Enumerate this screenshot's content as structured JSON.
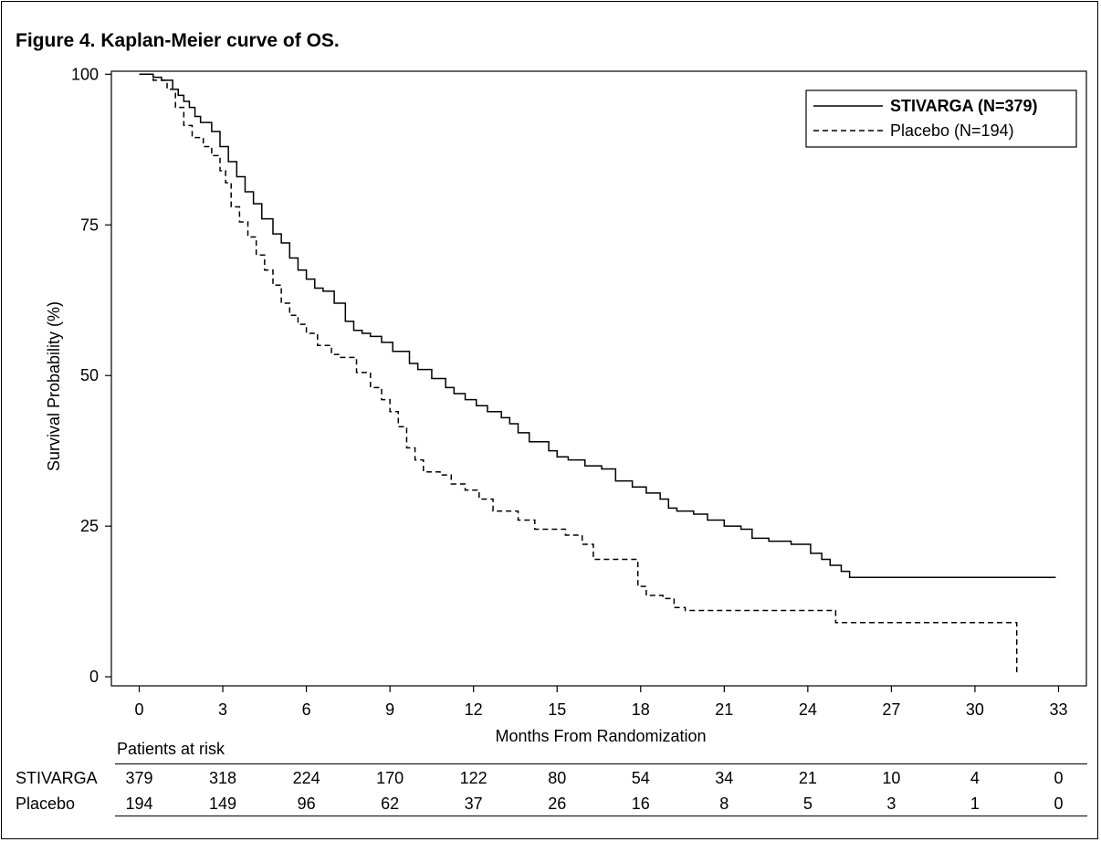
{
  "figure": {
    "title": "Figure 4. Kaplan-Meier curve of OS."
  },
  "chart_data": {
    "type": "line",
    "step": true,
    "xlabel": "Months From Randomization",
    "ylabel": "Survival Probability (%)",
    "xlim": [
      -1,
      34
    ],
    "ylim": [
      -1.5,
      100.5
    ],
    "xticks": [
      0,
      3,
      6,
      9,
      12,
      15,
      18,
      21,
      24,
      27,
      30,
      33
    ],
    "yticks": [
      0,
      25,
      50,
      75,
      100
    ],
    "grid": false,
    "legend": {
      "position": "top-right"
    },
    "series": [
      {
        "name": "STIVARGA (N=379)",
        "style": "solid",
        "x": [
          0,
          0.5,
          0.8,
          1.2,
          1.4,
          1.6,
          1.8,
          2.0,
          2.2,
          2.6,
          2.9,
          3.2,
          3.5,
          3.8,
          4.1,
          4.4,
          4.8,
          5.1,
          5.4,
          5.7,
          6.0,
          6.3,
          6.6,
          7.0,
          7.4,
          7.7,
          8.0,
          8.3,
          8.7,
          9.1,
          9.7,
          10.0,
          10.5,
          11.0,
          11.3,
          11.7,
          12.1,
          12.5,
          13.0,
          13.3,
          13.6,
          14.0,
          14.7,
          15.0,
          15.4,
          16.0,
          16.6,
          17.1,
          17.7,
          18.2,
          18.7,
          19.0,
          19.3,
          19.9,
          20.4,
          21.0,
          21.6,
          22.0,
          22.6,
          23.4,
          24.1,
          24.5,
          24.8,
          25.2,
          25.5,
          32.9
        ],
        "values": [
          100,
          99.5,
          99,
          97.5,
          96.5,
          95.5,
          94.5,
          93,
          92,
          90.5,
          88,
          85.5,
          83,
          80.5,
          78.5,
          76,
          73.5,
          72,
          69.5,
          67.5,
          66,
          64.5,
          64,
          62,
          59,
          57.5,
          57,
          56.5,
          55.5,
          54,
          52,
          51,
          49.5,
          48,
          47,
          46,
          45,
          44,
          43,
          42,
          40.5,
          39,
          37.5,
          36.5,
          36,
          35,
          34.5,
          32.5,
          31.5,
          30.5,
          29.5,
          28,
          27.5,
          27,
          26,
          25,
          24.5,
          23,
          22.5,
          22,
          20.5,
          19.5,
          18.5,
          17.5,
          16.5,
          16.5
        ]
      },
      {
        "name": "Placebo (N=194)",
        "style": "dashed",
        "x": [
          0,
          0.5,
          1.0,
          1.3,
          1.6,
          1.9,
          2.3,
          2.6,
          2.9,
          3.1,
          3.3,
          3.6,
          3.9,
          4.2,
          4.5,
          4.8,
          5.1,
          5.4,
          5.7,
          6.0,
          6.4,
          6.9,
          7.2,
          7.8,
          8.3,
          8.7,
          9.0,
          9.3,
          9.6,
          9.9,
          10.2,
          10.8,
          11.2,
          11.7,
          12.2,
          12.7,
          13.6,
          14.2,
          15.3,
          15.9,
          16.3,
          17.6,
          17.9,
          18.2,
          18.8,
          19.2,
          19.6,
          21.0,
          25.0,
          28.0,
          31.5,
          31.5
        ],
        "values": [
          100,
          99,
          97.5,
          94.5,
          91.5,
          89.5,
          88,
          86.5,
          84,
          82,
          78,
          75.5,
          73,
          70,
          67.5,
          65,
          62,
          60,
          58.5,
          57,
          55,
          53.5,
          53,
          50.5,
          48,
          46,
          44,
          41.5,
          38,
          36,
          34,
          33.5,
          32,
          31,
          29.5,
          27.5,
          26,
          24.5,
          23.5,
          22,
          19.5,
          19.5,
          15,
          13.5,
          13,
          11.5,
          11,
          11,
          9,
          9,
          9,
          0.5
        ]
      }
    ]
  },
  "risk_table": {
    "header": "Patients at risk",
    "times": [
      0,
      3,
      6,
      9,
      12,
      15,
      18,
      21,
      24,
      27,
      30,
      33
    ],
    "rows": [
      {
        "label": "STIVARGA",
        "values": [
          379,
          318,
          224,
          170,
          122,
          80,
          54,
          34,
          21,
          10,
          4,
          0
        ]
      },
      {
        "label": "Placebo",
        "values": [
          194,
          149,
          96,
          62,
          37,
          26,
          16,
          8,
          5,
          3,
          1,
          0
        ]
      }
    ]
  }
}
